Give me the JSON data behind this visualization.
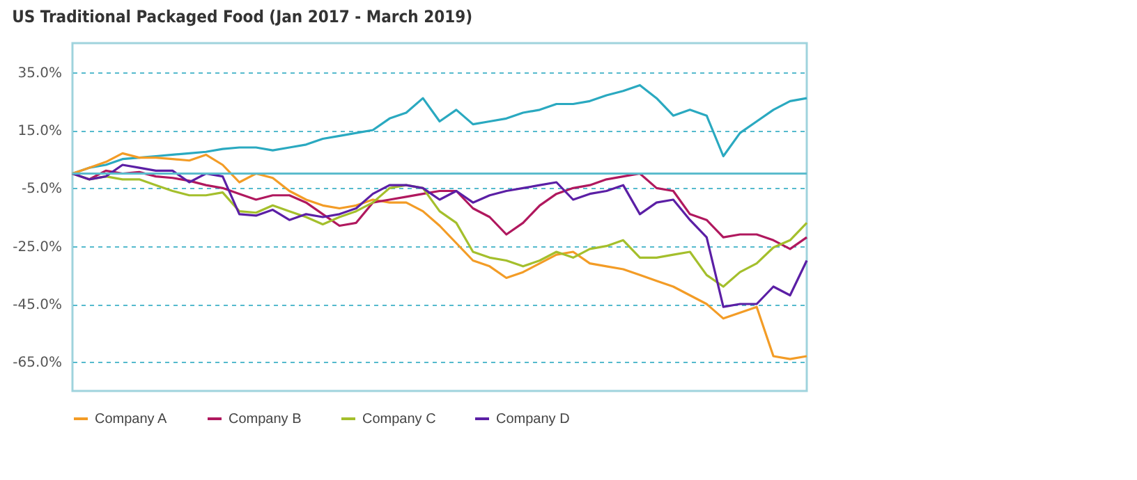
{
  "chart_data": {
    "type": "line",
    "title": "US Traditional Packaged Food (Jan 2017 - March 2019)",
    "categories": [
      null,
      null,
      null,
      null,
      null,
      null,
      null,
      null,
      null,
      null,
      null,
      null,
      null,
      null,
      null,
      null,
      null,
      null,
      null,
      null,
      null,
      null,
      null,
      null,
      null,
      null,
      null,
      null,
      null,
      null,
      null,
      null,
      null,
      null,
      null,
      null,
      null,
      null,
      null,
      null,
      null,
      null,
      null,
      null,
      null
    ],
    "series": [
      {
        "color": "#2aa9c0",
        "values": [
          0,
          2,
          3,
          5,
          5.5,
          6,
          6.5,
          7,
          7.5,
          8.5,
          9,
          9,
          8,
          9,
          10,
          12,
          13,
          14,
          15,
          19,
          21,
          26,
          18,
          22,
          17,
          18,
          19,
          21,
          22,
          24,
          24,
          25,
          27,
          28.5,
          30.5,
          26,
          20,
          22,
          20,
          6,
          14,
          18,
          22,
          25,
          26
        ]
      },
      {
        "name": "Company A",
        "color": "#f39c26",
        "values": [
          0,
          2,
          4,
          7,
          5.5,
          5.5,
          5,
          4.5,
          6.5,
          3,
          -3,
          0,
          -1.5,
          -6,
          -9,
          -11,
          -12,
          -11,
          -9,
          -10,
          -10,
          -13,
          -18,
          -24,
          -30,
          -32,
          -36,
          -34,
          -31,
          -28,
          -27,
          -31,
          -32,
          -33,
          -35,
          -37,
          -39,
          -42,
          -45,
          -50,
          -48,
          -46,
          -63,
          -64,
          -63
        ]
      },
      {
        "name": "Company B",
        "color": "#b0185e",
        "values": [
          0,
          -2,
          1,
          0,
          0.5,
          -1,
          -1.5,
          -2.5,
          -4,
          -5,
          -7,
          -9,
          -7.5,
          -7.5,
          -10,
          -14,
          -18,
          -17,
          -10,
          -9,
          -8,
          -7,
          -6,
          -6,
          -12,
          -15,
          -21,
          -17,
          -11,
          -7,
          -5,
          -4,
          -2,
          -1,
          0,
          -5,
          -6,
          -14,
          -16,
          -22,
          -21,
          -21,
          -23,
          -26,
          -22
        ]
      },
      {
        "name": "Company C",
        "color": "#a4bf2c",
        "values": [
          0,
          -2,
          -1,
          -2,
          -2,
          -4,
          -6,
          -7.5,
          -7.5,
          -6.5,
          -13,
          -13.5,
          -11,
          -13,
          -15,
          -17.5,
          -15,
          -13,
          -10,
          -5,
          -4,
          -5,
          -13,
          -17,
          -27,
          -29,
          -30,
          -32,
          -30,
          -27,
          -29,
          -26,
          -25,
          -23,
          -29,
          -29,
          -28,
          -27,
          -35,
          -39,
          -34,
          -31,
          -25.5,
          -23,
          -17
        ]
      },
      {
        "name": "Company D",
        "color": "#5b1fa5",
        "values": [
          0,
          -2,
          -1,
          3,
          2,
          1,
          1,
          -3,
          0,
          -1,
          -14,
          -14.5,
          -12.5,
          -16,
          -14,
          -15,
          -14,
          -12,
          -7,
          -4,
          -4,
          -5,
          -9,
          -6,
          -10,
          -7.5,
          -6,
          -5,
          -4,
          -3,
          -9,
          -7,
          -6,
          -4,
          -14,
          -10,
          -9,
          -16,
          -22,
          -46,
          -45,
          -45,
          -39,
          -42,
          -30
        ]
      }
    ],
    "ylim": [
      -75,
      45
    ],
    "yticks": [
      {
        "value": 35,
        "label": "35.0%"
      },
      {
        "value": 15,
        "label": "15.0%"
      },
      {
        "value": -5,
        "label": "-5.0%"
      },
      {
        "value": -25,
        "label": "-25.0%"
      },
      {
        "value": -45,
        "label": "-45.0%"
      },
      {
        "value": -65,
        "label": "-65.0%"
      }
    ],
    "ref_lines": [
      {
        "axis": "y",
        "value": 0,
        "color": "#5bbccd"
      }
    ],
    "grid": "y",
    "legend": "bottom",
    "tick_labels": "y",
    "line_style": "solid",
    "marker": "none"
  }
}
